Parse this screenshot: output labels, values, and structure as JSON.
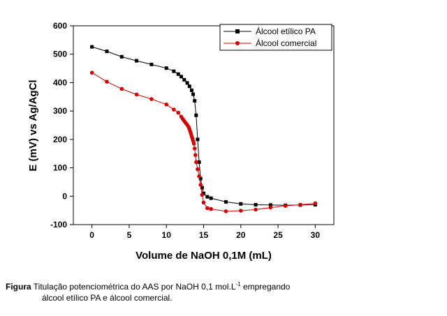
{
  "chart_data": {
    "type": "line",
    "xlabel": "Volume de NaOH 0,1M (mL)",
    "ylabel": "E (mV) vs Ag/AgCl",
    "xlim": [
      -2.5,
      32.5
    ],
    "ylim": [
      -100,
      600
    ],
    "xticks": [
      "0",
      "5",
      "10",
      "15",
      "20",
      "25",
      "30"
    ],
    "yticks": [
      "-100",
      "0",
      "100",
      "200",
      "300",
      "400",
      "500",
      "600"
    ],
    "legend_position": "top-right",
    "series": [
      {
        "name": "Álcool etílico PA",
        "color": "#000000",
        "marker": "square",
        "points": [
          [
            0,
            526
          ],
          [
            2,
            510
          ],
          [
            4,
            491
          ],
          [
            6,
            477
          ],
          [
            8,
            464
          ],
          [
            10,
            451
          ],
          [
            11,
            440
          ],
          [
            11.6,
            430
          ],
          [
            12,
            421
          ],
          [
            12.4,
            410
          ],
          [
            12.8,
            399
          ],
          [
            13.1,
            387
          ],
          [
            13.4,
            373
          ],
          [
            13.6,
            359
          ],
          [
            13.8,
            336
          ],
          [
            14,
            285
          ],
          [
            14.2,
            200
          ],
          [
            14.4,
            120
          ],
          [
            14.6,
            62
          ],
          [
            14.8,
            30
          ],
          [
            15,
            10
          ],
          [
            15.5,
            -2
          ],
          [
            16,
            -7
          ],
          [
            18,
            -20
          ],
          [
            20,
            -27
          ],
          [
            22,
            -30
          ],
          [
            24,
            -31
          ],
          [
            26,
            -32
          ],
          [
            28,
            -31
          ],
          [
            30,
            -30
          ]
        ]
      },
      {
        "name": "Álcool comercial",
        "color": "#d40000",
        "marker": "circle",
        "points": [
          [
            0,
            435
          ],
          [
            2,
            403
          ],
          [
            4,
            378
          ],
          [
            6,
            358
          ],
          [
            8,
            342
          ],
          [
            10,
            323
          ],
          [
            11,
            305
          ],
          [
            11.6,
            294
          ],
          [
            12,
            280
          ],
          [
            12.2,
            272
          ],
          [
            12.4,
            265
          ],
          [
            12.6,
            258
          ],
          [
            12.8,
            251
          ],
          [
            13,
            243
          ],
          [
            13.1,
            236
          ],
          [
            13.2,
            228
          ],
          [
            13.3,
            220
          ],
          [
            13.4,
            211
          ],
          [
            13.5,
            203
          ],
          [
            13.6,
            194
          ],
          [
            13.7,
            185
          ],
          [
            13.8,
            168
          ],
          [
            13.9,
            145
          ],
          [
            14,
            120
          ],
          [
            14.2,
            95
          ],
          [
            14.4,
            70
          ],
          [
            14.6,
            40
          ],
          [
            14.8,
            5
          ],
          [
            15,
            -22
          ],
          [
            15.5,
            -42
          ],
          [
            16,
            -45
          ],
          [
            18,
            -53
          ],
          [
            20,
            -51
          ],
          [
            22,
            -47
          ],
          [
            24,
            -40
          ],
          [
            26,
            -34
          ],
          [
            28,
            -30
          ],
          [
            30,
            -25
          ]
        ]
      }
    ]
  },
  "caption": {
    "label": "Figura",
    "text_before_sup": "Titulação potenciométrica do AAS por NaOH 0,1 mol.L",
    "superscript": "-1",
    "text_after_sup": " empregando",
    "line2": "álcool etílico PA e álcool comercial."
  }
}
